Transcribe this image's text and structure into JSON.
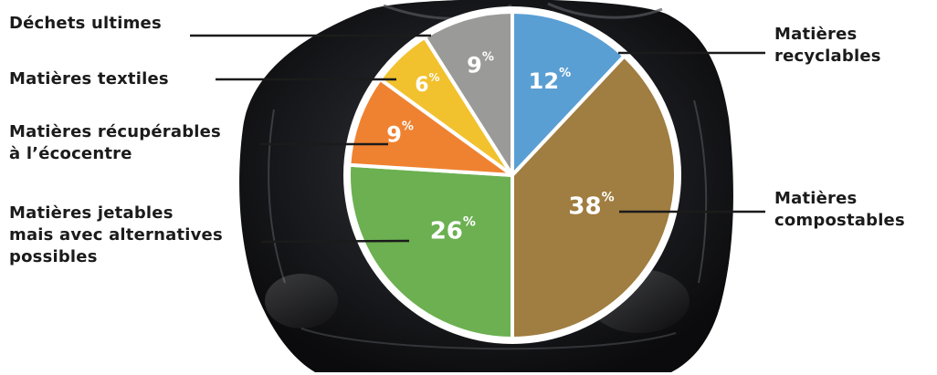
{
  "chart_data": {
    "type": "pie",
    "unit": "%",
    "slices": [
      {
        "label_lines": [
          "Matières",
          "recyclables"
        ],
        "value": 12,
        "color": "#5a9fd4"
      },
      {
        "label_lines": [
          "Matières",
          "compostables"
        ],
        "value": 38,
        "color": "#a07d40"
      },
      {
        "label_lines": [
          "Matières jetables",
          "mais avec alternatives",
          "possibles"
        ],
        "value": 26,
        "color": "#6cb051"
      },
      {
        "label_lines": [
          "Matières récupérables",
          "à l’écocentre"
        ],
        "value": 9,
        "color": "#ef8230"
      },
      {
        "label_lines": [
          "Matières textiles"
        ],
        "value": 6,
        "color": "#f2c12e"
      },
      {
        "label_lines": [
          "Déchets ultimes"
        ],
        "value": 9,
        "color": "#9a9a98"
      }
    ]
  }
}
